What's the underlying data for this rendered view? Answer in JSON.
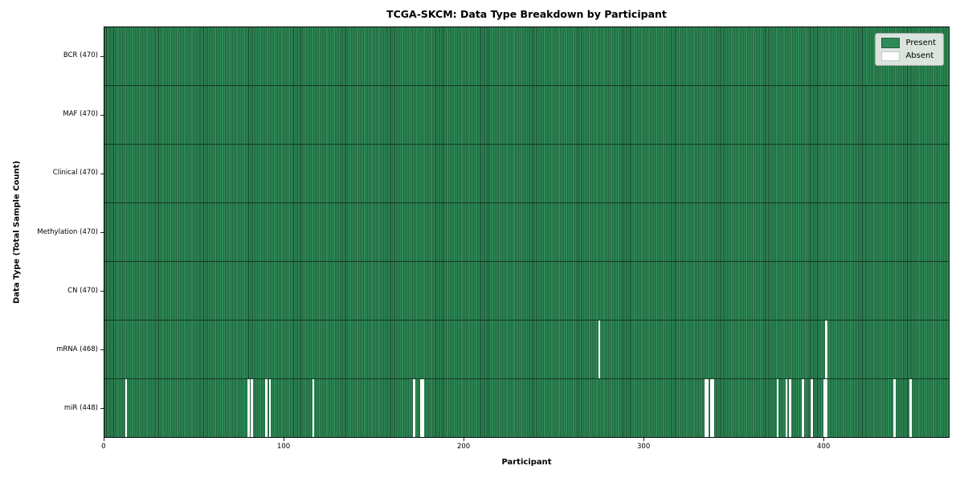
{
  "title": "TCGA-SKCM: Data Type Breakdown by Participant",
  "xlabel": "Participant",
  "ylabel": "Data Type (Total Sample Count)",
  "legend": {
    "present_label": "Present",
    "absent_label": "Absent"
  },
  "colors": {
    "present": "#2e8b57",
    "absent": "#ffffff",
    "bar_edge": "#16402a",
    "plot_border": "#0a0a0a",
    "legend_bg": "#eaede9",
    "legend_border": "#a6aaa6",
    "present_swatch_edge": "#2a5c3e",
    "absent_swatch_edge": "#c8c8c8"
  },
  "chart_data": {
    "type": "heatmap",
    "title": "TCGA-SKCM: Data Type Breakdown by Participant",
    "xlabel": "Participant",
    "ylabel": "Data Type (Total Sample Count)",
    "legend": [
      "Present",
      "Absent"
    ],
    "legend_position": "upper right",
    "x_range": [
      0,
      470
    ],
    "n_participants": 470,
    "x_ticks": [
      0,
      100,
      200,
      300,
      400
    ],
    "cell_states": [
      "Present",
      "Absent"
    ],
    "rows": [
      {
        "label": "BCR (470)",
        "data_type": "BCR",
        "present_count": 470,
        "absent_participants": []
      },
      {
        "label": "MAF (470)",
        "data_type": "MAF",
        "present_count": 470,
        "absent_participants": []
      },
      {
        "label": "Clinical (470)",
        "data_type": "Clinical",
        "present_count": 470,
        "absent_participants": []
      },
      {
        "label": "Methylation (470)",
        "data_type": "Methylation",
        "present_count": 470,
        "absent_participants": []
      },
      {
        "label": "CN (470)",
        "data_type": "CN",
        "present_count": 470,
        "absent_participants": []
      },
      {
        "label": "mRNA (468)",
        "data_type": "mRNA",
        "present_count": 468,
        "absent_participants": [
          275,
          401
        ]
      },
      {
        "label": "miR (448)",
        "data_type": "miR",
        "present_count": 448,
        "absent_participants": [
          12,
          80,
          82,
          90,
          92,
          116,
          172,
          176,
          177,
          334,
          335,
          337,
          338,
          374,
          379,
          381,
          388,
          393,
          400,
          401,
          439,
          448
        ]
      }
    ]
  }
}
